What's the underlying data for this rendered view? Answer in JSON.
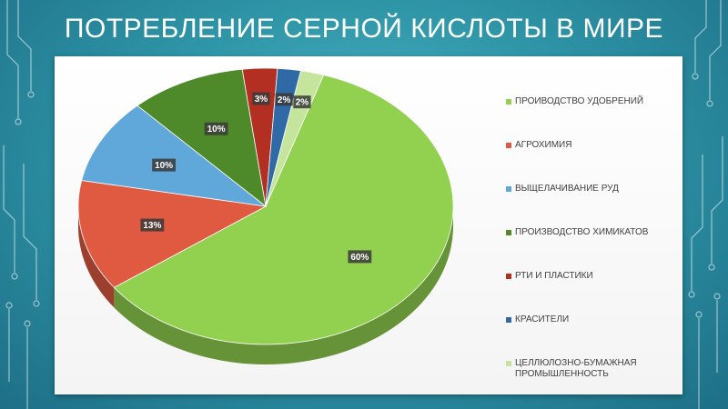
{
  "title": "ПОТРЕБЛЕНИЕ СЕРНОЙ КИСЛОТЫ В МИРЕ",
  "chart_data": {
    "type": "pie",
    "title": "",
    "slices": [
      {
        "label": "ПРОИВОДСТВО УДОБРЕНИЙ",
        "value": 60,
        "data_label": "60%",
        "color": "#92d050"
      },
      {
        "label": "АГРОХИМИЯ",
        "value": 13,
        "data_label": "13%",
        "color": "#e05a41"
      },
      {
        "label": "ВЫЩЕЛАЧИВАНИЕ РУД",
        "value": 10,
        "data_label": "10%",
        "color": "#5fa8d9"
      },
      {
        "label": "ПРОИЗВОДСТВО ХИМИКАТОВ",
        "value": 10,
        "data_label": "10%",
        "color": "#4f8a2a"
      },
      {
        "label": "РТИ И ПЛАСТИКИ",
        "value": 3,
        "data_label": "3%",
        "color": "#b22f22"
      },
      {
        "label": "КРАСИТЕЛИ",
        "value": 2,
        "data_label": "2%",
        "color": "#2f6aa6"
      },
      {
        "label": "ЦЕЛЛЮЛОЗНО-БУМАЖНАЯ ПРОМЫШЛЕННОСТЬ",
        "value": 2,
        "data_label": "2%",
        "color": "#c4e59b"
      }
    ],
    "legend_position": "right"
  }
}
